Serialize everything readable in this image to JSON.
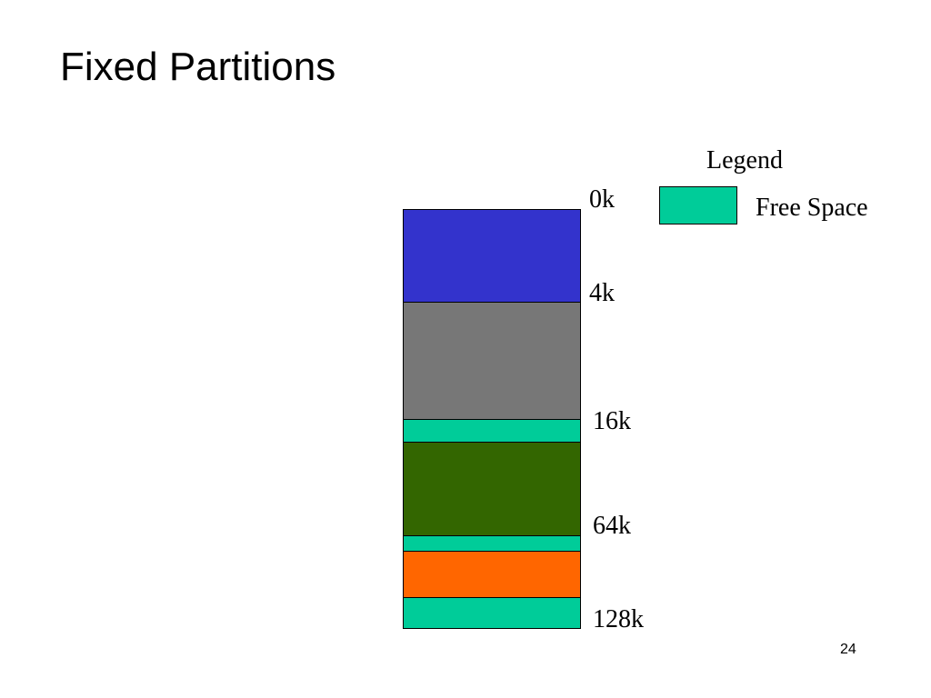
{
  "slide": {
    "title": "Fixed Partitions",
    "page_number": "24"
  },
  "memory_map": {
    "blocks": [
      {
        "name": "partition-block-1",
        "color": "#3333cc"
      },
      {
        "name": "partition-block-2",
        "color": "#777777"
      },
      {
        "name": "free-space-block",
        "color": "#00cc99"
      },
      {
        "name": "partition-block-3",
        "color": "#336600"
      },
      {
        "name": "free-space-block",
        "color": "#00cc99"
      },
      {
        "name": "partition-block-4",
        "color": "#ff6600"
      },
      {
        "name": "free-space-block",
        "color": "#00cc99"
      }
    ],
    "address_labels": [
      "0k",
      "4k",
      "16k",
      "64k",
      "128k"
    ]
  },
  "legend": {
    "title": "Legend",
    "items": [
      {
        "label": "Free Space",
        "color": "#00cc99"
      }
    ]
  }
}
